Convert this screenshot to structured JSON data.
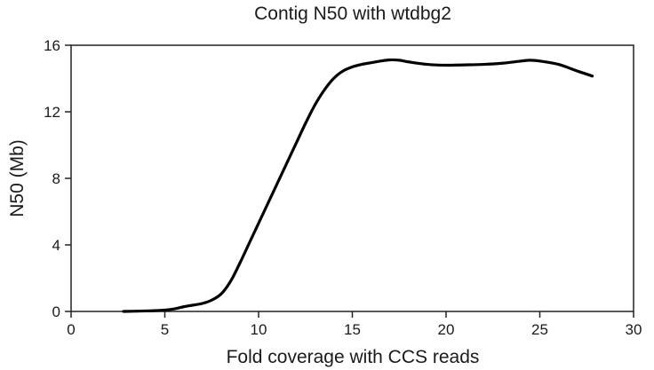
{
  "chart_data": {
    "type": "line",
    "title": "Contig N50 with wtdbg2",
    "xlabel": "Fold coverage with CCS reads",
    "ylabel": "N50 (Mb)",
    "xlim": [
      0,
      30
    ],
    "ylim": [
      0,
      16
    ],
    "xticks": [
      0,
      5,
      10,
      15,
      20,
      25,
      30
    ],
    "yticks": [
      0,
      4,
      8,
      12,
      16
    ],
    "grid": false,
    "legend": "none",
    "series": [
      {
        "color": "#000000",
        "x": [
          2.8,
          4.0,
          5.0,
          5.5,
          6.0,
          6.5,
          7.0,
          7.5,
          8.0,
          8.5,
          9.0,
          9.5,
          10.0,
          10.5,
          11.0,
          11.5,
          12.0,
          12.5,
          13.0,
          13.5,
          14.0,
          14.5,
          15.0,
          15.5,
          16.0,
          16.5,
          17.0,
          17.5,
          18.0,
          19.0,
          20.0,
          21.0,
          22.0,
          23.0,
          24.0,
          24.5,
          25.0,
          26.0,
          27.0,
          27.8
        ],
        "y": [
          0.0,
          0.03,
          0.08,
          0.15,
          0.28,
          0.38,
          0.48,
          0.68,
          1.05,
          1.8,
          2.9,
          4.1,
          5.3,
          6.5,
          7.7,
          8.9,
          10.1,
          11.3,
          12.4,
          13.3,
          14.0,
          14.45,
          14.7,
          14.85,
          14.95,
          15.05,
          15.12,
          15.1,
          15.0,
          14.85,
          14.8,
          14.82,
          14.85,
          14.92,
          15.05,
          15.1,
          15.05,
          14.85,
          14.45,
          14.15
        ]
      }
    ]
  }
}
